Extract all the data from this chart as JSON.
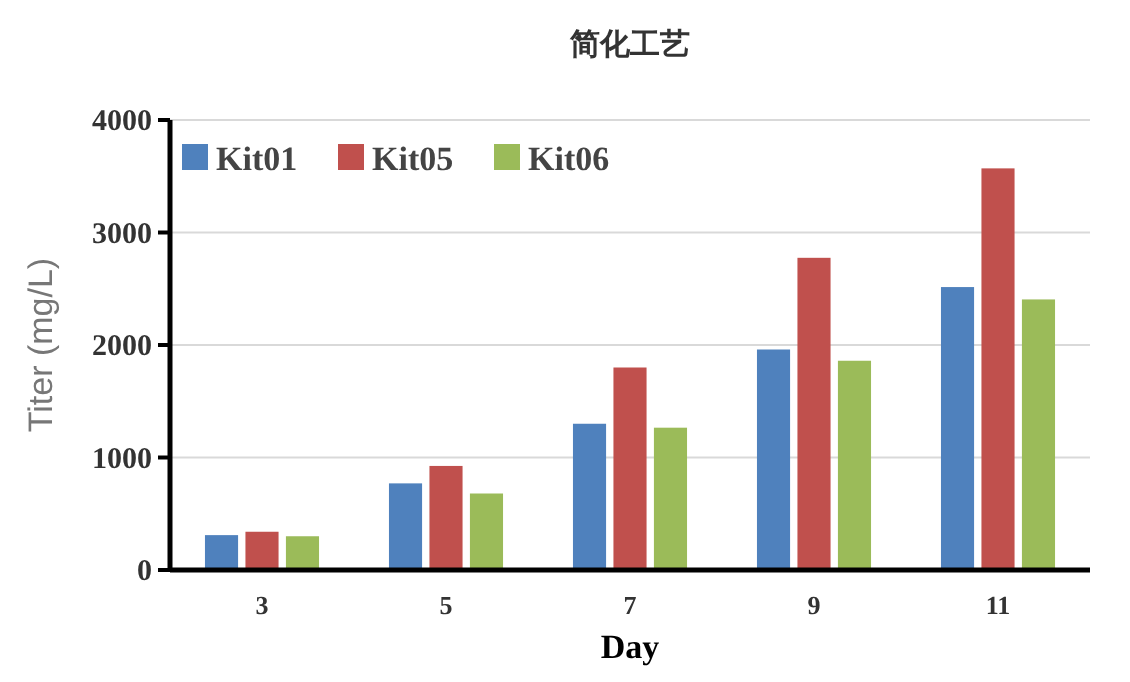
{
  "chart_data": {
    "type": "bar",
    "title": "简化工艺",
    "xlabel": "Day",
    "ylabel": "Titer (mg/L)",
    "categories": [
      "3",
      "5",
      "7",
      "9",
      "11"
    ],
    "series": [
      {
        "name": "Kit01",
        "color": "#4f81bd",
        "values": [
          310,
          770,
          1300,
          1960,
          2515
        ]
      },
      {
        "name": "Kit05",
        "color": "#c0504d",
        "values": [
          340,
          925,
          1800,
          2775,
          3570
        ]
      },
      {
        "name": "Kit06",
        "color": "#9bbb59",
        "values": [
          300,
          680,
          1265,
          1860,
          2405
        ]
      }
    ],
    "ylim": [
      0,
      4000
    ],
    "yticks": [
      0,
      1000,
      2000,
      3000,
      4000
    ],
    "grid": "y",
    "legend": "top left"
  }
}
